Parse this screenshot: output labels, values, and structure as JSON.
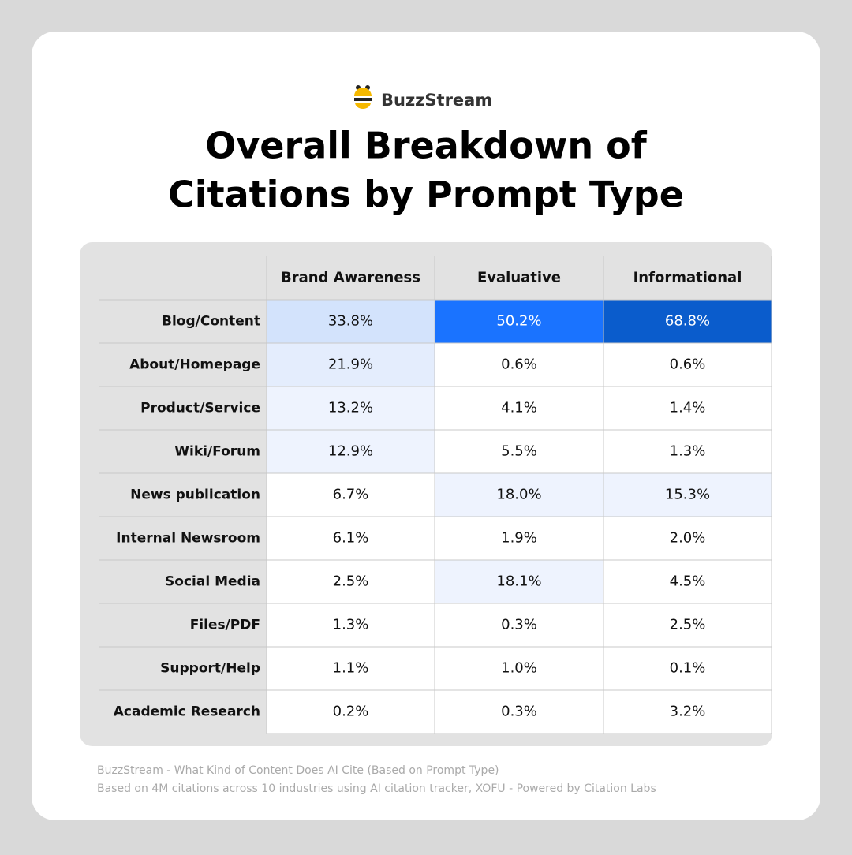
{
  "header": {
    "brand": "BuzzStream",
    "title": [
      "Overall Breakdown of",
      "Citations by Prompt Type"
    ]
  },
  "table": {
    "columns": [
      "Brand Awareness",
      "Evaluative",
      "Informational"
    ],
    "rows": [
      {
        "label": "Blog/Content",
        "cells": [
          "33.8%",
          "50.2%",
          "68.8%"
        ]
      },
      {
        "label": "About/Homepage",
        "cells": [
          "21.9%",
          "0.6%",
          "0.6%"
        ]
      },
      {
        "label": "Product/Service",
        "cells": [
          "13.2%",
          "4.1%",
          "1.4%"
        ]
      },
      {
        "label": "Wiki/Forum",
        "cells": [
          "12.9%",
          "5.5%",
          "1.3%"
        ]
      },
      {
        "label": "News publication",
        "cells": [
          "6.7%",
          "18.0%",
          "15.3%"
        ]
      },
      {
        "label": "Internal Newsroom",
        "cells": [
          "6.1%",
          "1.9%",
          "2.0%"
        ]
      },
      {
        "label": "Social Media",
        "cells": [
          "2.5%",
          "18.1%",
          "4.5%"
        ]
      },
      {
        "label": "Files/PDF",
        "cells": [
          "1.3%",
          "0.3%",
          "2.5%"
        ]
      },
      {
        "label": "Support/Help",
        "cells": [
          "1.1%",
          "1.0%",
          "0.1%"
        ]
      },
      {
        "label": "Academic Research",
        "cells": [
          "0.2%",
          "0.3%",
          "3.2%"
        ]
      }
    ]
  },
  "footer": [
    "BuzzStream - What Kind of Content Does AI Cite (Based on Prompt Type)",
    "Based on 4M citations across 10 industries using AI citation tracker, XOFU - Powered by Citation Labs"
  ]
}
